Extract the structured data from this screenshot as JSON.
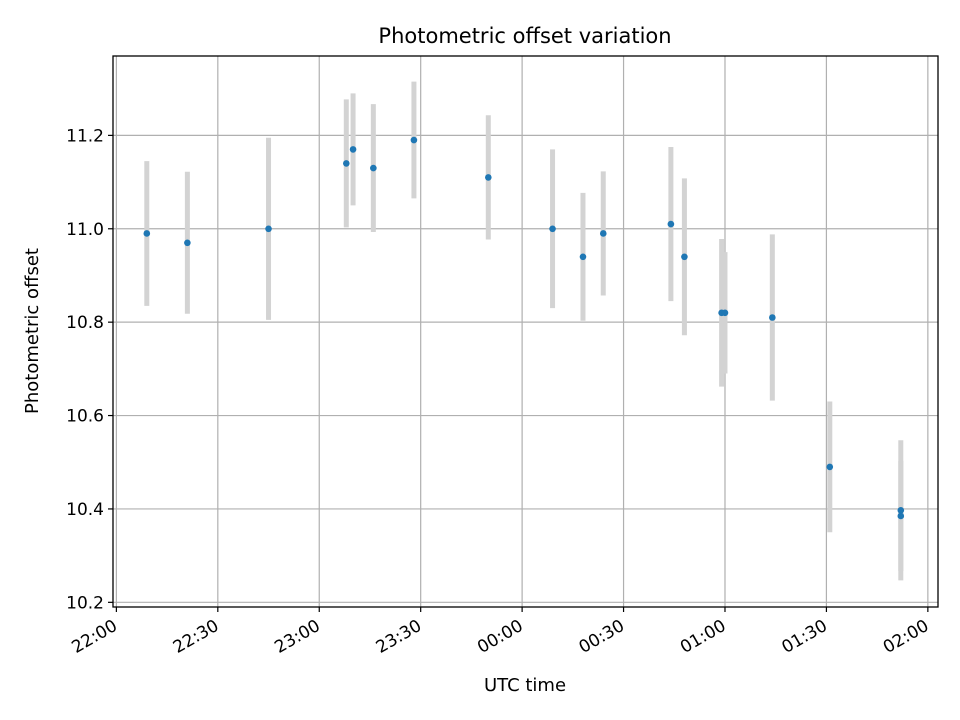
{
  "chart_data": {
    "type": "scatter",
    "title": "Photometric offset variation",
    "xlabel": "UTC time",
    "ylabel": "Photometric offset",
    "x_ticks": [
      "22:00",
      "22:30",
      "23:00",
      "23:30",
      "00:00",
      "00:30",
      "01:00",
      "01:30",
      "02:00"
    ],
    "y_ticks": [
      "10.2",
      "10.4",
      "10.6",
      "10.8",
      "11.0",
      "11.2"
    ],
    "xlim": [
      "21:59",
      "02:03"
    ],
    "ylim": [
      10.19,
      11.37
    ],
    "grid": true,
    "point_color": "#1f77b4",
    "errorbar_color": "#d3d3d3",
    "points": [
      {
        "x": "22:09",
        "y": 10.99,
        "err": 0.155
      },
      {
        "x": "22:21",
        "y": 10.97,
        "err": 0.152
      },
      {
        "x": "22:45",
        "y": 11.0,
        "err": 0.195
      },
      {
        "x": "23:08",
        "y": 11.14,
        "err": 0.137
      },
      {
        "x": "23:10",
        "y": 11.17,
        "err": 0.12
      },
      {
        "x": "23:16",
        "y": 11.13,
        "err": 0.137
      },
      {
        "x": "23:28",
        "y": 11.19,
        "err": 0.125
      },
      {
        "x": "23:50",
        "y": 11.11,
        "err": 0.133
      },
      {
        "x": "00:09",
        "y": 11.0,
        "err": 0.17
      },
      {
        "x": "00:18",
        "y": 10.94,
        "err": 0.137
      },
      {
        "x": "00:24",
        "y": 10.99,
        "err": 0.133
      },
      {
        "x": "00:44",
        "y": 11.01,
        "err": 0.165
      },
      {
        "x": "00:48",
        "y": 10.94,
        "err": 0.168
      },
      {
        "x": "00:59",
        "y": 10.82,
        "err": 0.158
      },
      {
        "x": "01:00",
        "y": 10.82,
        "err": 0.13
      },
      {
        "x": "01:14",
        "y": 10.81,
        "err": 0.178
      },
      {
        "x": "01:31",
        "y": 10.49,
        "err": 0.14
      },
      {
        "x": "01:52",
        "y": 10.385,
        "err": 0.118
      },
      {
        "x": "01:52",
        "y": 10.397,
        "err": 0.15
      }
    ]
  }
}
